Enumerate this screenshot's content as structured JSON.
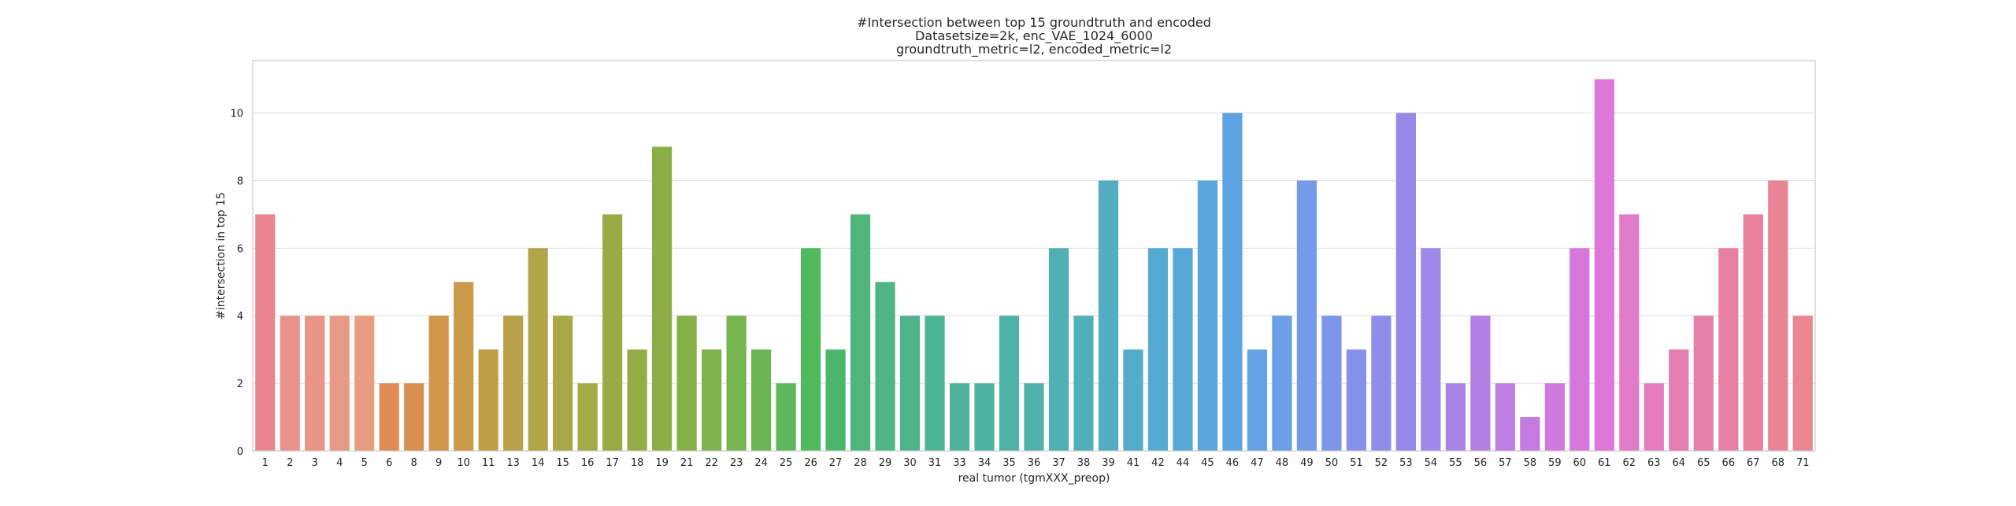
{
  "chart_data": {
    "type": "bar",
    "title": [
      "#Intersection between top 15 groundtruth and encoded",
      "Datasetsize=2k, enc_VAE_1024_6000",
      "groundtruth_metric=l2, encoded_metric=l2"
    ],
    "xlabel": "real tumor (tgmXXX_preop)",
    "ylabel": "#intersection in top 15",
    "ylim": [
      0,
      11.55
    ],
    "yticks": [
      0,
      2,
      4,
      6,
      8,
      10
    ],
    "grid": true,
    "categories": [
      "1",
      "2",
      "3",
      "4",
      "5",
      "6",
      "8",
      "9",
      "10",
      "11",
      "13",
      "14",
      "15",
      "16",
      "17",
      "18",
      "19",
      "21",
      "22",
      "23",
      "24",
      "25",
      "26",
      "27",
      "28",
      "29",
      "30",
      "31",
      "33",
      "34",
      "35",
      "36",
      "37",
      "38",
      "39",
      "41",
      "42",
      "44",
      "45",
      "46",
      "47",
      "48",
      "49",
      "50",
      "51",
      "52",
      "53",
      "54",
      "55",
      "56",
      "57",
      "58",
      "59",
      "60",
      "61",
      "62",
      "63",
      "64",
      "65",
      "66",
      "67",
      "68",
      "71"
    ],
    "values": [
      7,
      4,
      4,
      4,
      4,
      2,
      2,
      4,
      5,
      3,
      4,
      6,
      4,
      2,
      7,
      3,
      9,
      4,
      3,
      4,
      3,
      2,
      6,
      3,
      7,
      5,
      4,
      4,
      2,
      2,
      4,
      2,
      6,
      4,
      8,
      3,
      6,
      6,
      8,
      10,
      3,
      4,
      8,
      4,
      3,
      4,
      10,
      6,
      2,
      4,
      2,
      1,
      2,
      6,
      11,
      7,
      2,
      3,
      4,
      6,
      7,
      8,
      4
    ],
    "colors": [
      "#e8868f",
      "#e9928b",
      "#e99487",
      "#e89985",
      "#e89c80",
      "#e08a55",
      "#d98f50",
      "#d1954b",
      "#c99a47",
      "#c19d45",
      "#b9a148",
      "#b2a547",
      "#aaa747",
      "#a2a946",
      "#9aab46",
      "#93ad45",
      "#8cae46",
      "#86b048",
      "#7eb24b",
      "#75b44e",
      "#6cb555",
      "#5eb75a",
      "#4fb95c",
      "#4cb76b",
      "#4eb67a",
      "#4fb584",
      "#4fb48c",
      "#4fb494",
      "#4eb39a",
      "#4eb2a0",
      "#4fb2a7",
      "#50b1ad",
      "#50b0b4",
      "#51afba",
      "#52adc2",
      "#53acc9",
      "#54aad0",
      "#56a8d7",
      "#58a6dd",
      "#5ca4e1",
      "#63a1e4",
      "#6b9fe7",
      "#739be9",
      "#7c97ea",
      "#8592ea",
      "#8d8eea",
      "#9689e9",
      "#a086e8",
      "#aa83e6",
      "#b47fe4",
      "#bd7de3",
      "#c57ae1",
      "#cf78e0",
      "#d777dd",
      "#de78d8",
      "#e17ac9",
      "#e47cbf",
      "#e47db4",
      "#e57fab",
      "#e780a2",
      "#e8829b",
      "#e88496",
      "#e98690"
    ]
  }
}
